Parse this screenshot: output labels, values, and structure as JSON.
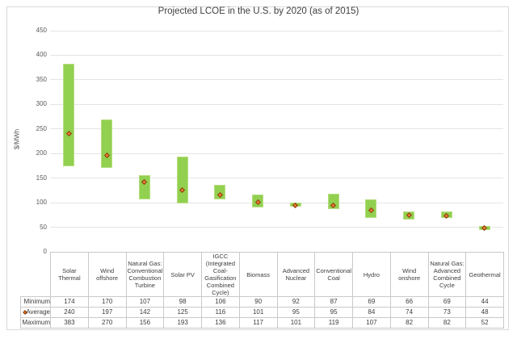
{
  "chart_data": {
    "type": "bar",
    "subtype": "floating-range-bars-with-average-markers",
    "title": "Projected LCOE in the U.S. by 2020 (as of 2015)",
    "xlabel": "",
    "ylabel": "$/MWh",
    "ylim": [
      0,
      450
    ],
    "y_ticks": [
      0,
      50,
      100,
      150,
      200,
      250,
      300,
      350,
      400,
      450
    ],
    "grid": true,
    "legend_position": "data-table-left",
    "categories": [
      "Solar Thermal",
      "Wind offshore",
      "Natural Gas: Conventional Combustion Turbine",
      "Solar PV",
      "IGCC (Integrated Coal-Gasification Combined Cycle)",
      "Biomass",
      "Advanced Nuclear",
      "Conventional Coal",
      "Hydro",
      "Wind onshore",
      "Natural Gas: Advanced Combined Cycle",
      "Geothermal"
    ],
    "series": [
      {
        "name": "Minimum",
        "marker": "none",
        "values": [
          174,
          170,
          107,
          98,
          106,
          90,
          92,
          87,
          69,
          66,
          69,
          44
        ]
      },
      {
        "name": "Average",
        "marker": "orange-diamond",
        "values": [
          240,
          197,
          142,
          125,
          116,
          101,
          95,
          95,
          84,
          74,
          73,
          48
        ]
      },
      {
        "name": "Maximum",
        "marker": "none",
        "values": [
          383,
          270,
          156,
          193,
          136,
          117,
          101,
          119,
          107,
          82,
          82,
          52
        ]
      }
    ]
  },
  "colors": {
    "bar_fill": "#92d050",
    "bar_border": "#b6de81",
    "marker_fill": "#ed7d31",
    "marker_border": "#843c0c",
    "gridline": "#e4e4e4",
    "table_border": "#c9c9c9",
    "axis_text": "#595959",
    "title_text": "#3f3f3f",
    "background": "#ffffff"
  }
}
